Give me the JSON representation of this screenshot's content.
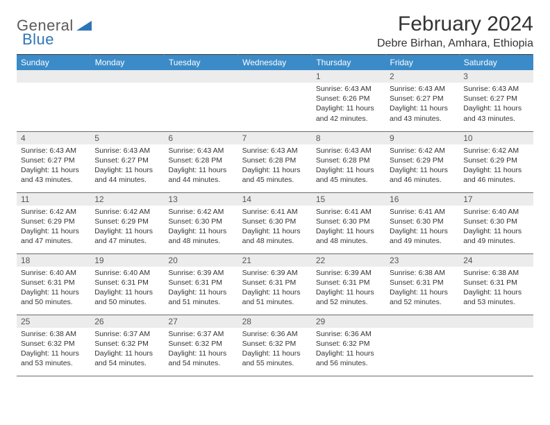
{
  "logo": {
    "word1": "General",
    "word2": "Blue",
    "accent_color": "#2e75b6",
    "text_color": "#5a5a5a"
  },
  "title": "February 2024",
  "location": "Debre Birhan, Amhara, Ethiopia",
  "colors": {
    "header_bg": "#3b8bc8",
    "header_text": "#ffffff",
    "daynum_bg": "#ececec",
    "rule": "#6b6b6b"
  },
  "weekdays": [
    "Sunday",
    "Monday",
    "Tuesday",
    "Wednesday",
    "Thursday",
    "Friday",
    "Saturday"
  ],
  "weeks": [
    [
      {
        "day": "",
        "sunrise": "",
        "sunset": "",
        "daylight": ""
      },
      {
        "day": "",
        "sunrise": "",
        "sunset": "",
        "daylight": ""
      },
      {
        "day": "",
        "sunrise": "",
        "sunset": "",
        "daylight": ""
      },
      {
        "day": "",
        "sunrise": "",
        "sunset": "",
        "daylight": ""
      },
      {
        "day": "1",
        "sunrise": "Sunrise: 6:43 AM",
        "sunset": "Sunset: 6:26 PM",
        "daylight": "Daylight: 11 hours and 42 minutes."
      },
      {
        "day": "2",
        "sunrise": "Sunrise: 6:43 AM",
        "sunset": "Sunset: 6:27 PM",
        "daylight": "Daylight: 11 hours and 43 minutes."
      },
      {
        "day": "3",
        "sunrise": "Sunrise: 6:43 AM",
        "sunset": "Sunset: 6:27 PM",
        "daylight": "Daylight: 11 hours and 43 minutes."
      }
    ],
    [
      {
        "day": "4",
        "sunrise": "Sunrise: 6:43 AM",
        "sunset": "Sunset: 6:27 PM",
        "daylight": "Daylight: 11 hours and 43 minutes."
      },
      {
        "day": "5",
        "sunrise": "Sunrise: 6:43 AM",
        "sunset": "Sunset: 6:27 PM",
        "daylight": "Daylight: 11 hours and 44 minutes."
      },
      {
        "day": "6",
        "sunrise": "Sunrise: 6:43 AM",
        "sunset": "Sunset: 6:28 PM",
        "daylight": "Daylight: 11 hours and 44 minutes."
      },
      {
        "day": "7",
        "sunrise": "Sunrise: 6:43 AM",
        "sunset": "Sunset: 6:28 PM",
        "daylight": "Daylight: 11 hours and 45 minutes."
      },
      {
        "day": "8",
        "sunrise": "Sunrise: 6:43 AM",
        "sunset": "Sunset: 6:28 PM",
        "daylight": "Daylight: 11 hours and 45 minutes."
      },
      {
        "day": "9",
        "sunrise": "Sunrise: 6:42 AM",
        "sunset": "Sunset: 6:29 PM",
        "daylight": "Daylight: 11 hours and 46 minutes."
      },
      {
        "day": "10",
        "sunrise": "Sunrise: 6:42 AM",
        "sunset": "Sunset: 6:29 PM",
        "daylight": "Daylight: 11 hours and 46 minutes."
      }
    ],
    [
      {
        "day": "11",
        "sunrise": "Sunrise: 6:42 AM",
        "sunset": "Sunset: 6:29 PM",
        "daylight": "Daylight: 11 hours and 47 minutes."
      },
      {
        "day": "12",
        "sunrise": "Sunrise: 6:42 AM",
        "sunset": "Sunset: 6:29 PM",
        "daylight": "Daylight: 11 hours and 47 minutes."
      },
      {
        "day": "13",
        "sunrise": "Sunrise: 6:42 AM",
        "sunset": "Sunset: 6:30 PM",
        "daylight": "Daylight: 11 hours and 48 minutes."
      },
      {
        "day": "14",
        "sunrise": "Sunrise: 6:41 AM",
        "sunset": "Sunset: 6:30 PM",
        "daylight": "Daylight: 11 hours and 48 minutes."
      },
      {
        "day": "15",
        "sunrise": "Sunrise: 6:41 AM",
        "sunset": "Sunset: 6:30 PM",
        "daylight": "Daylight: 11 hours and 48 minutes."
      },
      {
        "day": "16",
        "sunrise": "Sunrise: 6:41 AM",
        "sunset": "Sunset: 6:30 PM",
        "daylight": "Daylight: 11 hours and 49 minutes."
      },
      {
        "day": "17",
        "sunrise": "Sunrise: 6:40 AM",
        "sunset": "Sunset: 6:30 PM",
        "daylight": "Daylight: 11 hours and 49 minutes."
      }
    ],
    [
      {
        "day": "18",
        "sunrise": "Sunrise: 6:40 AM",
        "sunset": "Sunset: 6:31 PM",
        "daylight": "Daylight: 11 hours and 50 minutes."
      },
      {
        "day": "19",
        "sunrise": "Sunrise: 6:40 AM",
        "sunset": "Sunset: 6:31 PM",
        "daylight": "Daylight: 11 hours and 50 minutes."
      },
      {
        "day": "20",
        "sunrise": "Sunrise: 6:39 AM",
        "sunset": "Sunset: 6:31 PM",
        "daylight": "Daylight: 11 hours and 51 minutes."
      },
      {
        "day": "21",
        "sunrise": "Sunrise: 6:39 AM",
        "sunset": "Sunset: 6:31 PM",
        "daylight": "Daylight: 11 hours and 51 minutes."
      },
      {
        "day": "22",
        "sunrise": "Sunrise: 6:39 AM",
        "sunset": "Sunset: 6:31 PM",
        "daylight": "Daylight: 11 hours and 52 minutes."
      },
      {
        "day": "23",
        "sunrise": "Sunrise: 6:38 AM",
        "sunset": "Sunset: 6:31 PM",
        "daylight": "Daylight: 11 hours and 52 minutes."
      },
      {
        "day": "24",
        "sunrise": "Sunrise: 6:38 AM",
        "sunset": "Sunset: 6:31 PM",
        "daylight": "Daylight: 11 hours and 53 minutes."
      }
    ],
    [
      {
        "day": "25",
        "sunrise": "Sunrise: 6:38 AM",
        "sunset": "Sunset: 6:32 PM",
        "daylight": "Daylight: 11 hours and 53 minutes."
      },
      {
        "day": "26",
        "sunrise": "Sunrise: 6:37 AM",
        "sunset": "Sunset: 6:32 PM",
        "daylight": "Daylight: 11 hours and 54 minutes."
      },
      {
        "day": "27",
        "sunrise": "Sunrise: 6:37 AM",
        "sunset": "Sunset: 6:32 PM",
        "daylight": "Daylight: 11 hours and 54 minutes."
      },
      {
        "day": "28",
        "sunrise": "Sunrise: 6:36 AM",
        "sunset": "Sunset: 6:32 PM",
        "daylight": "Daylight: 11 hours and 55 minutes."
      },
      {
        "day": "29",
        "sunrise": "Sunrise: 6:36 AM",
        "sunset": "Sunset: 6:32 PM",
        "daylight": "Daylight: 11 hours and 56 minutes."
      },
      {
        "day": "",
        "sunrise": "",
        "sunset": "",
        "daylight": ""
      },
      {
        "day": "",
        "sunrise": "",
        "sunset": "",
        "daylight": ""
      }
    ]
  ]
}
